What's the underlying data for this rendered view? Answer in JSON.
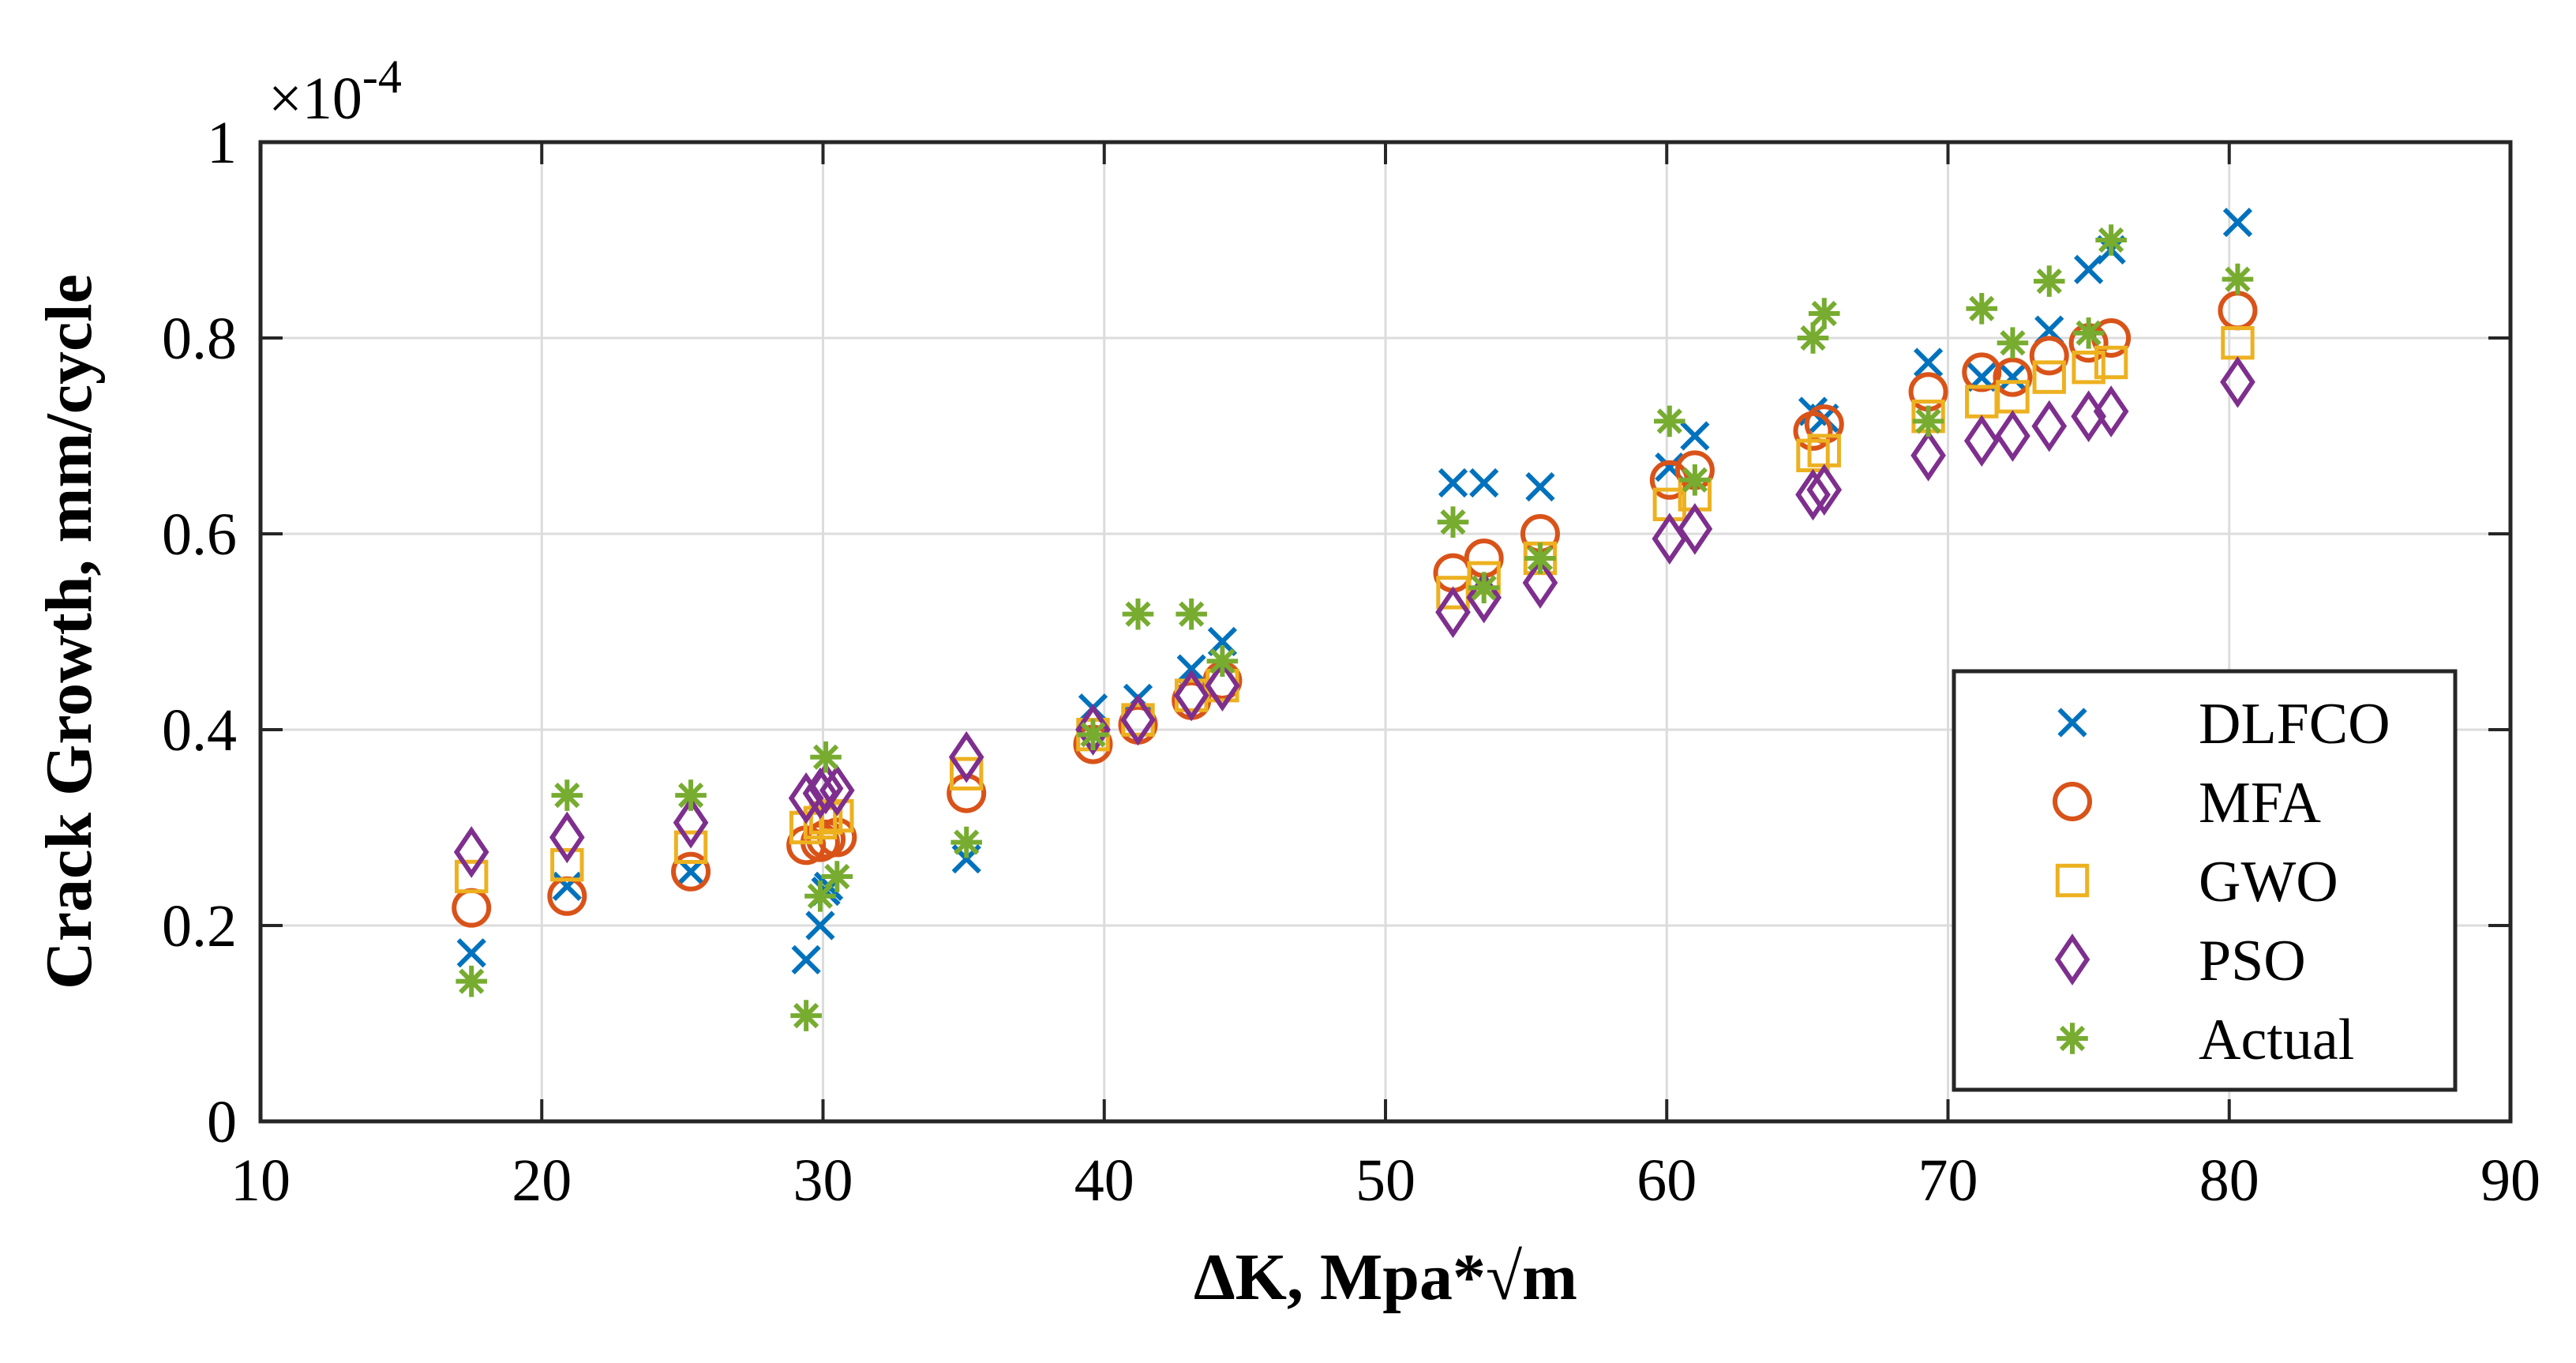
{
  "chart_data": {
    "type": "scatter",
    "title": "",
    "xlabel": "ΔK, Mpa*√m",
    "ylabel": "Crack Growth, mm/cycle",
    "y_exponent_label": "×10",
    "y_exponent_power": "-4",
    "xlim": [
      10,
      90
    ],
    "ylim": [
      0,
      1
    ],
    "xticks": [
      "10",
      "20",
      "30",
      "40",
      "50",
      "60",
      "70",
      "80",
      "90"
    ],
    "yticks": [
      "0",
      "0.2",
      "0.4",
      "0.6",
      "0.8",
      "1"
    ],
    "grid": true,
    "legend_position": "bottom-right",
    "series": [
      {
        "name": "DLFCO",
        "marker": "x",
        "color": "#0072BD",
        "x": [
          17.5,
          20.9,
          25.3,
          29.4,
          29.9,
          30.1,
          30.2,
          35.1,
          39.6,
          41.2,
          43.1,
          44.2,
          52.4,
          53.5,
          55.5,
          60.1,
          61.0,
          65.2,
          65.6,
          69.3,
          71.2,
          72.3,
          73.6,
          75.0,
          75.8,
          80.3
        ],
        "y": [
          0.172,
          0.24,
          0.255,
          0.165,
          0.2,
          0.235,
          0.24,
          0.268,
          0.422,
          0.432,
          0.462,
          0.49,
          0.652,
          0.652,
          0.648,
          0.668,
          0.7,
          0.725,
          0.718,
          0.775,
          0.76,
          0.76,
          0.808,
          0.87,
          0.89,
          0.918
        ]
      },
      {
        "name": "MFA",
        "marker": "o",
        "color": "#D95319",
        "x": [
          17.5,
          20.9,
          25.3,
          29.4,
          29.9,
          30.1,
          30.5,
          35.1,
          39.6,
          41.2,
          43.1,
          44.2,
          52.4,
          53.5,
          55.5,
          60.1,
          61.0,
          65.2,
          65.6,
          69.3,
          71.2,
          72.3,
          73.6,
          75.0,
          75.8,
          80.3
        ],
        "y": [
          0.218,
          0.23,
          0.255,
          0.282,
          0.285,
          0.288,
          0.29,
          0.335,
          0.385,
          0.405,
          0.43,
          0.45,
          0.56,
          0.575,
          0.6,
          0.655,
          0.665,
          0.705,
          0.712,
          0.745,
          0.765,
          0.76,
          0.782,
          0.795,
          0.8,
          0.828
        ]
      },
      {
        "name": "GWO",
        "marker": "s",
        "color": "#EDB120",
        "x": [
          17.5,
          20.9,
          25.3,
          29.4,
          29.9,
          30.1,
          30.5,
          35.1,
          39.6,
          41.2,
          43.1,
          44.2,
          52.4,
          53.5,
          55.5,
          60.1,
          61.0,
          65.2,
          65.6,
          69.3,
          71.2,
          72.3,
          73.6,
          75.0,
          75.8,
          80.3
        ],
        "y": [
          0.25,
          0.262,
          0.28,
          0.3,
          0.305,
          0.31,
          0.312,
          0.355,
          0.395,
          0.41,
          0.435,
          0.445,
          0.54,
          0.555,
          0.575,
          0.63,
          0.64,
          0.68,
          0.685,
          0.72,
          0.735,
          0.74,
          0.76,
          0.77,
          0.775,
          0.795
        ]
      },
      {
        "name": "PSO",
        "marker": "d",
        "color": "#7E2F8E",
        "x": [
          17.5,
          20.9,
          25.3,
          29.4,
          29.9,
          30.1,
          30.5,
          35.1,
          39.6,
          41.2,
          43.1,
          44.2,
          52.4,
          53.5,
          55.5,
          60.1,
          61.0,
          65.2,
          65.6,
          69.3,
          71.2,
          72.3,
          73.6,
          75.0,
          75.8,
          80.3
        ],
        "y": [
          0.275,
          0.29,
          0.305,
          0.33,
          0.335,
          0.34,
          0.338,
          0.372,
          0.4,
          0.41,
          0.435,
          0.445,
          0.52,
          0.535,
          0.55,
          0.595,
          0.605,
          0.64,
          0.645,
          0.68,
          0.695,
          0.7,
          0.71,
          0.72,
          0.725,
          0.755
        ]
      },
      {
        "name": "Actual",
        "marker": "*",
        "color": "#77AC30",
        "x": [
          17.5,
          20.9,
          25.3,
          29.4,
          29.9,
          30.1,
          30.5,
          35.1,
          39.6,
          41.2,
          43.1,
          44.2,
          52.4,
          53.5,
          55.5,
          60.1,
          61.0,
          65.2,
          65.6,
          69.3,
          71.2,
          72.3,
          73.6,
          75.0,
          75.8,
          80.3
        ],
        "y": [
          0.143,
          0.333,
          0.333,
          0.108,
          0.23,
          0.372,
          0.25,
          0.285,
          0.395,
          0.518,
          0.518,
          0.47,
          0.612,
          0.545,
          0.575,
          0.715,
          0.655,
          0.8,
          0.825,
          0.715,
          0.83,
          0.795,
          0.858,
          0.805,
          0.9,
          0.86
        ]
      }
    ]
  }
}
